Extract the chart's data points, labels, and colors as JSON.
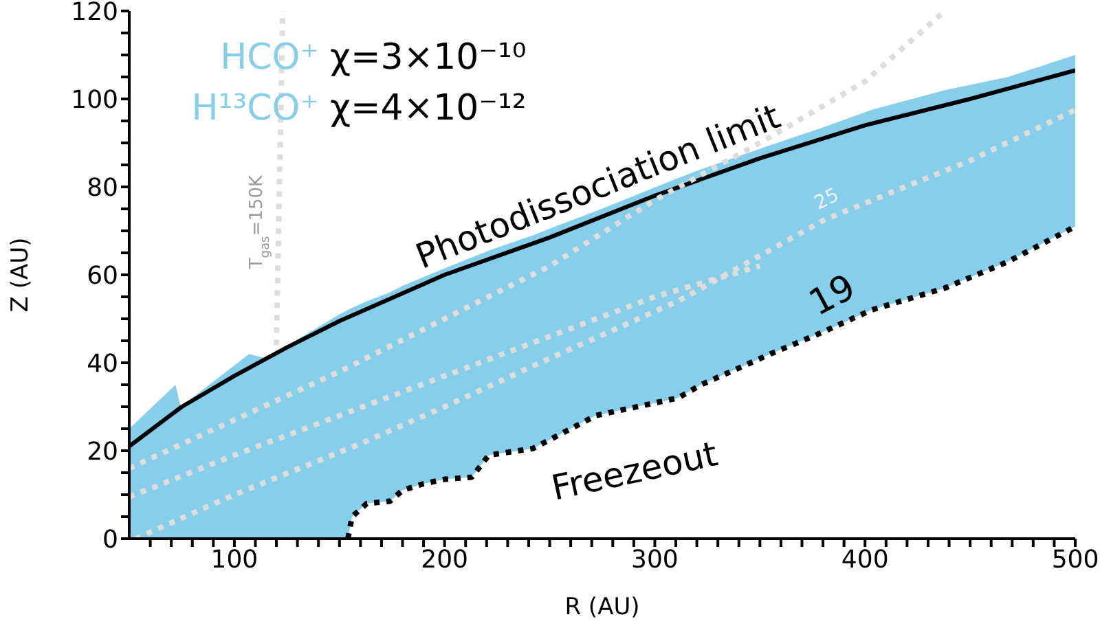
{
  "chart_data": {
    "type": "line",
    "xlabel": "R (AU)",
    "ylabel": "Z (AU)",
    "xlim": [
      50,
      500
    ],
    "xticks": [
      {
        "value": 60,
        "label": null
      },
      {
        "value": 70,
        "label": null
      },
      {
        "value": 80,
        "label": null
      },
      {
        "value": 90,
        "label": null
      },
      100,
      {
        "value": 110,
        "label": null
      },
      {
        "value": 120,
        "label": null
      },
      {
        "value": 130,
        "label": null
      },
      {
        "value": 140,
        "label": null
      },
      {
        "value": 150,
        "label": null
      },
      {
        "value": 160,
        "label": null
      },
      {
        "value": 170,
        "label": null
      },
      {
        "value": 180,
        "label": null
      },
      {
        "value": 190,
        "label": null
      },
      200,
      {
        "value": 210,
        "label": null
      },
      {
        "value": 220,
        "label": null
      },
      {
        "value": 230,
        "label": null
      },
      {
        "value": 240,
        "label": null
      },
      {
        "value": 250,
        "label": null
      },
      {
        "value": 260,
        "label": null
      },
      {
        "value": 270,
        "label": null
      },
      {
        "value": 280,
        "label": null
      },
      {
        "value": 290,
        "label": null
      },
      300,
      {
        "value": 310,
        "label": null
      },
      {
        "value": 320,
        "label": null
      },
      {
        "value": 330,
        "label": null
      },
      {
        "value": 340,
        "label": null
      },
      {
        "value": 350,
        "label": null
      },
      {
        "value": 360,
        "label": null
      },
      {
        "value": 370,
        "label": null
      },
      {
        "value": 380,
        "label": null
      },
      {
        "value": 390,
        "label": null
      },
      400,
      {
        "value": 410,
        "label": null
      },
      {
        "value": 420,
        "label": null
      },
      {
        "value": 430,
        "label": null
      },
      {
        "value": 440,
        "label": null
      },
      {
        "value": 450,
        "label": null
      },
      {
        "value": 460,
        "label": null
      },
      {
        "value": 470,
        "label": null
      },
      {
        "value": 480,
        "label": null
      },
      {
        "value": 490,
        "label": null
      },
      500
    ],
    "ylim": [
      0,
      120
    ],
    "yticks": [
      0,
      {
        "value": 5,
        "label": null
      },
      {
        "value": 10,
        "label": null
      },
      {
        "value": 15,
        "label": null
      },
      20,
      {
        "value": 25,
        "label": null
      },
      {
        "value": 30,
        "label": null
      },
      {
        "value": 35,
        "label": null
      },
      40,
      {
        "value": 45,
        "label": null
      },
      {
        "value": 50,
        "label": null
      },
      {
        "value": 55,
        "label": null
      },
      60,
      {
        "value": 65,
        "label": null
      },
      {
        "value": 70,
        "label": null
      },
      {
        "value": 75,
        "label": null
      },
      80,
      {
        "value": 85,
        "label": null
      },
      {
        "value": 90,
        "label": null
      },
      {
        "value": 95,
        "label": null
      },
      100,
      {
        "value": 105,
        "label": null
      },
      {
        "value": 110,
        "label": null
      },
      {
        "value": 115,
        "label": null
      },
      120
    ],
    "marker": "none",
    "series": [
      {
        "type": "line",
        "name": "Photodissociation limit",
        "color": "#000000",
        "line_style": "solid",
        "x": [
          50,
          75,
          100,
          125,
          150,
          200,
          250,
          300,
          350,
          400,
          450,
          500
        ],
        "values": [
          21,
          30,
          37,
          43.5,
          49.5,
          60,
          68.5,
          78,
          86.5,
          94,
          100,
          106.5
        ]
      },
      {
        "type": "line",
        "name": "Freezeout",
        "color": "#000000",
        "line_style": "dotted",
        "x": [
          50,
          72,
          74.5,
          107,
          115,
          150,
          154,
          156,
          163,
          174,
          180,
          190,
          200,
          213,
          221,
          242,
          250,
          272,
          311,
          322,
          355,
          380,
          403,
          438,
          468,
          500
        ],
        "values": [
          null,
          null,
          null,
          null,
          null,
          null,
          0,
          5,
          8,
          8.5,
          11,
          12.5,
          13.5,
          14,
          19,
          20.5,
          22.5,
          28,
          32,
          35,
          42,
          47,
          52,
          57,
          63,
          71
        ],
        "lower": [
          0,
          0,
          0,
          0,
          0,
          0,
          0,
          5,
          8,
          8.5,
          11,
          12.5,
          13.5,
          14,
          19,
          20.5,
          22.5,
          28,
          32,
          35,
          42,
          47,
          52,
          57,
          63,
          71
        ],
        "upper": [
          25,
          35,
          30,
          42,
          41,
          51,
          52,
          52.5,
          54,
          56,
          57.5,
          59.5,
          61.5,
          64,
          65.5,
          69,
          70.5,
          74.5,
          82,
          84,
          89.5,
          93.5,
          97.5,
          102,
          105,
          110
        ]
      },
      {
        "type": "line",
        "color": "#dddddd",
        "line_style": "dotted",
        "x": [
          50,
          100,
          150,
          200,
          250,
          300,
          350,
          400,
          438
        ],
        "values": [
          16,
          27,
          38,
          50,
          62,
          77,
          90,
          104,
          120
        ]
      },
      {
        "type": "line",
        "color": "#dddddd",
        "line_style": "dotted",
        "x": [
          50,
          100,
          150,
          200,
          250,
          300,
          350
        ],
        "values": [
          9.5,
          19,
          28,
          37,
          46,
          55,
          62
        ]
      },
      {
        "type": "line",
        "color": "#dddddd",
        "line_style": "dotted",
        "x": [
          53,
          100,
          160,
          200,
          250,
          311,
          381,
          450,
          500
        ],
        "values": [
          0,
          10,
          21.6,
          30,
          41,
          54,
          72.6,
          86,
          97.5
        ]
      },
      {
        "type": "line",
        "color": "#dddddd",
        "line_style": "dotted",
        "x": [
          120,
          123
        ],
        "values": [
          44,
          120
        ]
      }
    ],
    "annotations": [
      "HCO⁺",
      "χ=3×10⁻¹⁰",
      "H¹³CO⁺",
      "χ=4×10⁻¹²",
      "T$_{gas}$=150K",
      "25",
      "19"
    ]
  }
}
